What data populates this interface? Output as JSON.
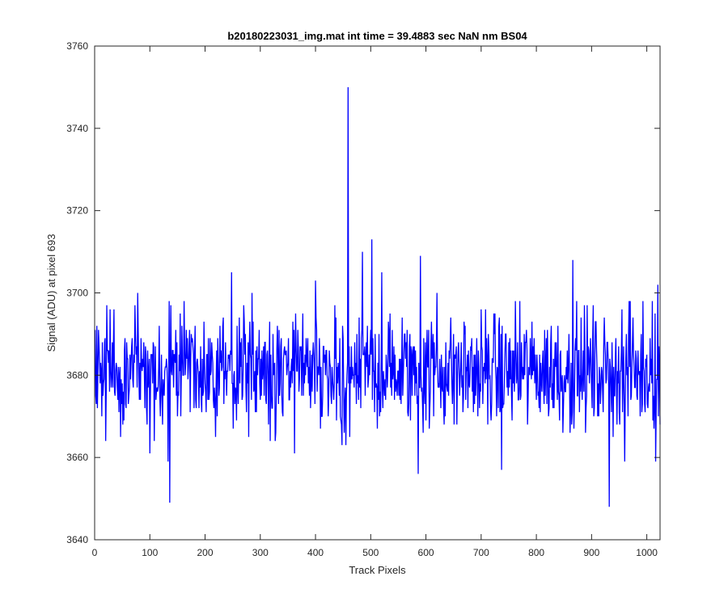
{
  "chart_data": {
    "type": "line",
    "title": "b20180223031_img.mat int time = 39.4883 sec  NaN nm BS04",
    "xlabel": "Track Pixels",
    "ylabel": "Signal (ADU) at pixel 693",
    "xlim": [
      0,
      1024
    ],
    "ylim": [
      3640,
      3760
    ],
    "xticks": [
      0,
      100,
      200,
      300,
      400,
      500,
      600,
      700,
      800,
      900,
      1000
    ],
    "yticks": [
      3640,
      3660,
      3680,
      3700,
      3720,
      3740,
      3760
    ],
    "grid": false,
    "line_color": "#0000ff",
    "series": [
      {
        "x_start": 1,
        "x_step": 1,
        "noise_mean": 3681,
        "noise_spread": 7,
        "notable_points": [
          {
            "x": 4,
            "y": 3692
          },
          {
            "x": 20,
            "y": 3664
          },
          {
            "x": 78,
            "y": 3700
          },
          {
            "x": 100,
            "y": 3661
          },
          {
            "x": 133,
            "y": 3659
          },
          {
            "x": 136,
            "y": 3649
          },
          {
            "x": 138,
            "y": 3697
          },
          {
            "x": 248,
            "y": 3705
          },
          {
            "x": 270,
            "y": 3697
          },
          {
            "x": 285,
            "y": 3700
          },
          {
            "x": 362,
            "y": 3661
          },
          {
            "x": 400,
            "y": 3703
          },
          {
            "x": 455,
            "y": 3663
          },
          {
            "x": 459,
            "y": 3750
          },
          {
            "x": 462,
            "y": 3665
          },
          {
            "x": 485,
            "y": 3710
          },
          {
            "x": 502,
            "y": 3713
          },
          {
            "x": 520,
            "y": 3705
          },
          {
            "x": 586,
            "y": 3656
          },
          {
            "x": 590,
            "y": 3709
          },
          {
            "x": 620,
            "y": 3700
          },
          {
            "x": 737,
            "y": 3657
          },
          {
            "x": 866,
            "y": 3708
          },
          {
            "x": 932,
            "y": 3648
          },
          {
            "x": 960,
            "y": 3659
          },
          {
            "x": 970,
            "y": 3698
          },
          {
            "x": 1010,
            "y": 3698
          },
          {
            "x": 1016,
            "y": 3659
          },
          {
            "x": 1020,
            "y": 3702
          },
          {
            "x": 1024,
            "y": 3668
          }
        ]
      }
    ]
  }
}
